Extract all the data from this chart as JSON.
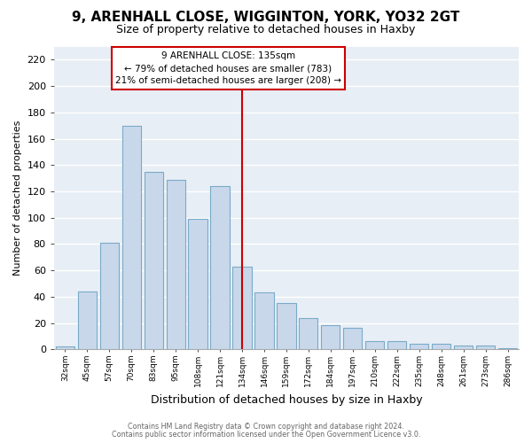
{
  "title": "9, ARENHALL CLOSE, WIGGINTON, YORK, YO32 2GT",
  "subtitle": "Size of property relative to detached houses in Haxby",
  "xlabel": "Distribution of detached houses by size in Haxby",
  "ylabel": "Number of detached properties",
  "bin_labels": [
    "32sqm",
    "45sqm",
    "57sqm",
    "70sqm",
    "83sqm",
    "95sqm",
    "108sqm",
    "121sqm",
    "134sqm",
    "146sqm",
    "159sqm",
    "172sqm",
    "184sqm",
    "197sqm",
    "210sqm",
    "222sqm",
    "235sqm",
    "248sqm",
    "261sqm",
    "273sqm",
    "286sqm"
  ],
  "bar_values": [
    2,
    44,
    81,
    170,
    135,
    129,
    99,
    124,
    63,
    43,
    35,
    24,
    18,
    16,
    6,
    6,
    4,
    4,
    3,
    3,
    1
  ],
  "bar_color": "#c8d8ea",
  "bar_edge_color": "#7aaac8",
  "vline_x_idx": 8,
  "vline_color": "#cc0000",
  "ylim": [
    0,
    230
  ],
  "yticks": [
    0,
    20,
    40,
    60,
    80,
    100,
    120,
    140,
    160,
    180,
    200,
    220
  ],
  "annotation_title": "9 ARENHALL CLOSE: 135sqm",
  "annotation_line1": "← 79% of detached houses are smaller (783)",
  "annotation_line2": "21% of semi-detached houses are larger (208) →",
  "annotation_box_facecolor": "#ffffff",
  "annotation_box_edgecolor": "#cc0000",
  "footer1": "Contains HM Land Registry data © Crown copyright and database right 2024.",
  "footer2": "Contains public sector information licensed under the Open Government Licence v3.0.",
  "bg_color": "#ffffff",
  "plot_bg_color": "#e8eef5",
  "grid_color": "#ffffff",
  "title_fontsize": 11,
  "subtitle_fontsize": 9
}
